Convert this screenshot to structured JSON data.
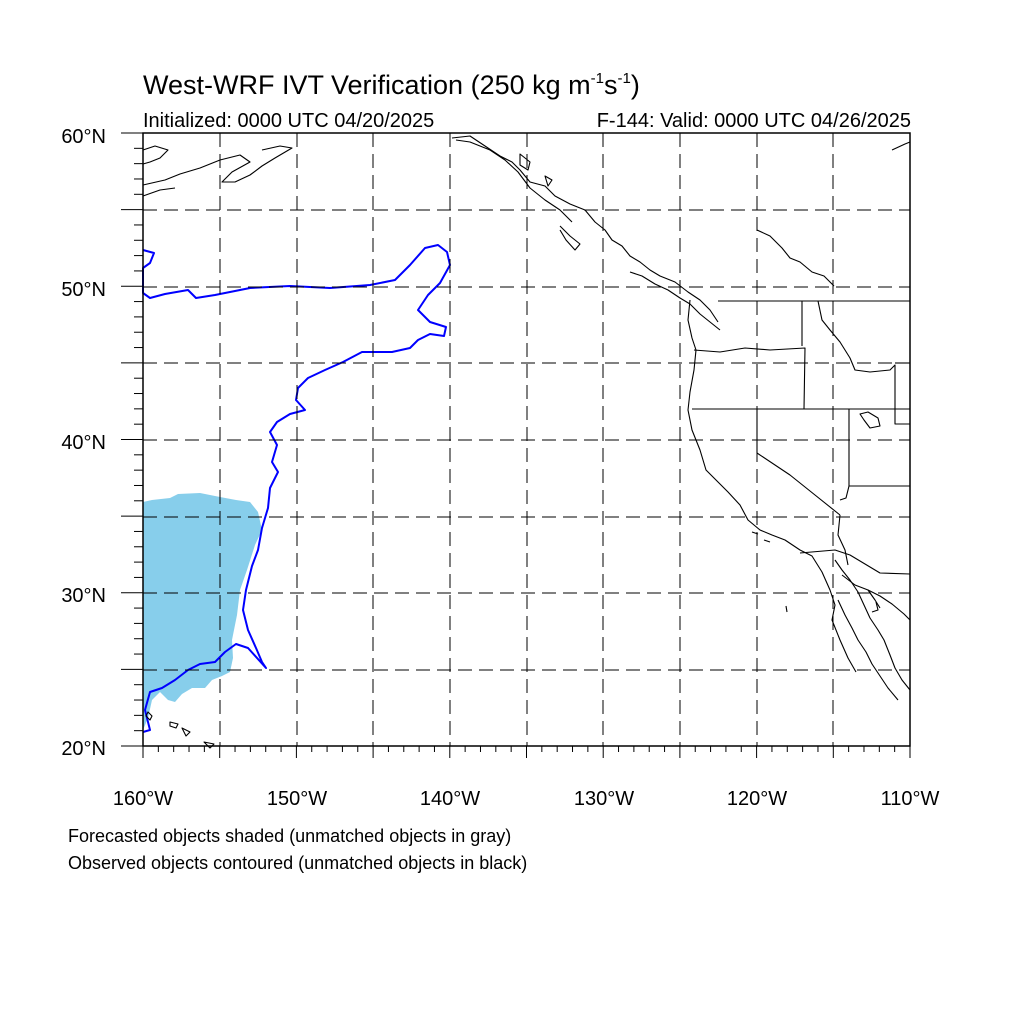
{
  "title": {
    "main": "West-WRF IVT Verification (250 kg m",
    "exp1": "-1",
    "mid": "s",
    "exp2": "-1",
    "close": ")"
  },
  "init_label": "Initialized: 0000 UTC 04/20/2025",
  "valid_label": "F-144: Valid: 0000 UTC 04/26/2025",
  "map": {
    "lon_range": [
      -160,
      -110
    ],
    "lat_range": [
      20,
      60
    ],
    "lat_labels": [
      "20°N",
      "30°N",
      "40°N",
      "50°N",
      "60°N"
    ],
    "lon_labels": [
      "160°W",
      "150°W",
      "140°W",
      "130°W",
      "120°W",
      "110°W"
    ],
    "forecast_fill_color": "#87ceeb",
    "observed_contour_color": "#0000ff",
    "coast_color": "#000000",
    "grid": "dashed every 5°"
  },
  "legend_notes": [
    "Forecasted objects shaded (unmatched objects in gray)",
    "Observed objects contoured (unmatched objects in black)"
  ]
}
